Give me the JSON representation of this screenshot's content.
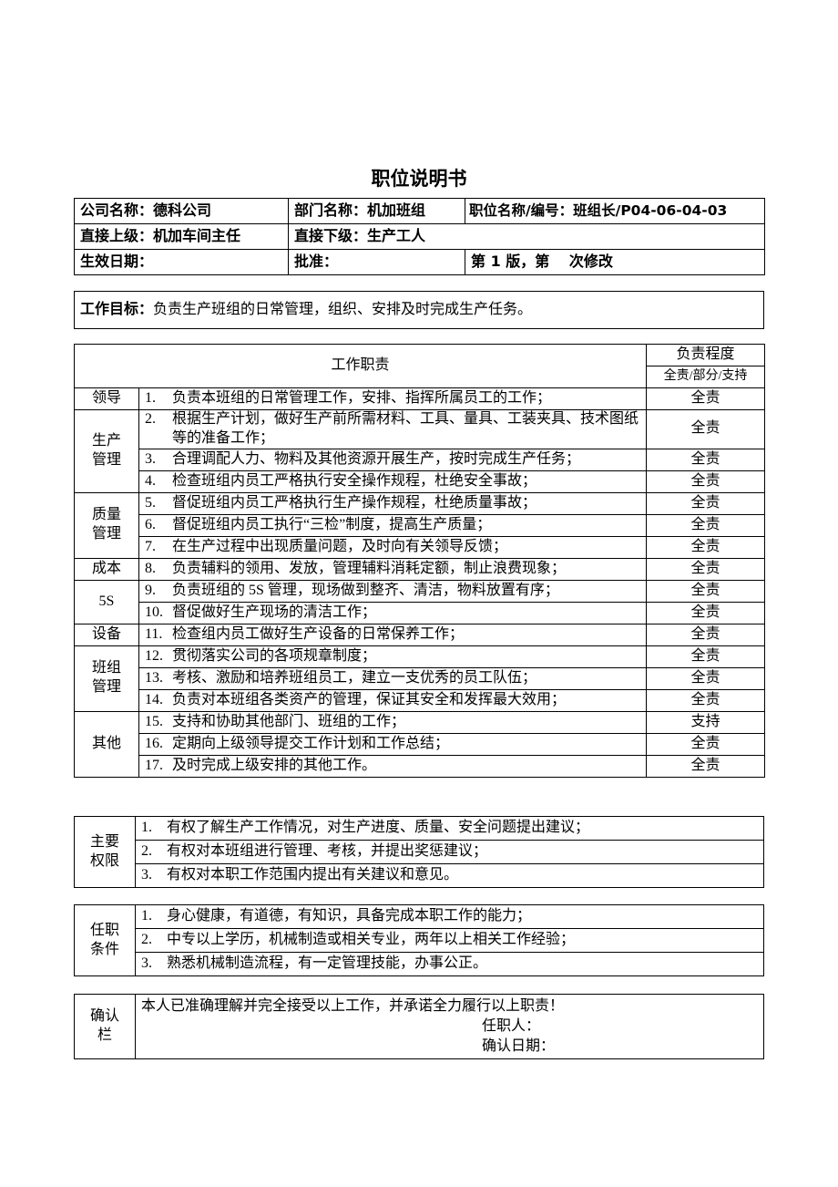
{
  "title": "职位说明书",
  "header": {
    "company": "公司名称：德科公司",
    "department": "部门名称：机加班组",
    "position": "职位名称/编号：班组长/P04-06-04-03",
    "superior": "直接上级：机加车间主任",
    "subordinate": "直接下级：生产工人",
    "effective_date": "生效日期：",
    "approval": "批准：",
    "version": "第 1 版，第　 次修改"
  },
  "goal": {
    "label": "工作目标：",
    "text": "负责生产班组的日常管理，组织、安排及时完成生产任务。"
  },
  "duties": {
    "header": "工作职责",
    "degree_header": "负责程度",
    "degree_sub": "全责/部分/支持",
    "groups": [
      {
        "category": "领导",
        "items": [
          {
            "no": "1.",
            "text": "负责本班组的日常管理工作，安排、指挥所属员工的工作；",
            "degree": "全责"
          }
        ]
      },
      {
        "category": "生产管理",
        "items": [
          {
            "no": "2.",
            "text": "根据生产计划，做好生产前所需材料、工具、量具、工装夹具、技术图纸等的准备工作；",
            "degree": "全责"
          },
          {
            "no": "3.",
            "text": "合理调配人力、物料及其他资源开展生产，按时完成生产任务；",
            "degree": "全责"
          },
          {
            "no": "4.",
            "text": "检查班组内员工严格执行安全操作规程，杜绝安全事故；",
            "degree": "全责"
          }
        ]
      },
      {
        "category": "质量管理",
        "items": [
          {
            "no": "5.",
            "text": "督促班组内员工严格执行生产操作规程，杜绝质量事故；",
            "degree": "全责"
          },
          {
            "no": "6.",
            "text": "督促班组内员工执行“三检”制度，提高生产质量；",
            "degree": "全责"
          },
          {
            "no": "7.",
            "text": "在生产过程中出现质量问题，及时向有关领导反馈；",
            "degree": "全责"
          }
        ]
      },
      {
        "category": "成本",
        "items": [
          {
            "no": "8.",
            "text": "负责辅料的领用、发放，管理辅料消耗定额，制止浪费现象；",
            "degree": "全责"
          }
        ]
      },
      {
        "category": "5S",
        "items": [
          {
            "no": "9.",
            "text": "负责班组的 5S 管理，现场做到整齐、清洁，物料放置有序；",
            "degree": "全责"
          },
          {
            "no": "10.",
            "text": "督促做好生产现场的清洁工作；",
            "degree": "全责"
          }
        ]
      },
      {
        "category": "设备",
        "items": [
          {
            "no": "11.",
            "text": "检查组内员工做好生产设备的日常保养工作；",
            "degree": "全责"
          }
        ]
      },
      {
        "category": "班组管理",
        "items": [
          {
            "no": "12.",
            "text": "贯彻落实公司的各项规章制度；",
            "degree": "全责"
          },
          {
            "no": "13.",
            "text": "考核、激励和培养班组员工，建立一支优秀的员工队伍；",
            "degree": "全责"
          },
          {
            "no": "14.",
            "text": "负责对本班组各类资产的管理，保证其安全和发挥最大效用；",
            "degree": "全责"
          }
        ]
      },
      {
        "category": "其他",
        "items": [
          {
            "no": "15.",
            "text": "支持和协助其他部门、班组的工作；",
            "degree": "支持"
          },
          {
            "no": "16.",
            "text": "定期向上级领导提交工作计划和工作总结；",
            "degree": "全责"
          },
          {
            "no": "17.",
            "text": "及时完成上级安排的其他工作。",
            "degree": "全责"
          }
        ]
      }
    ]
  },
  "authority": {
    "label": "主要权限",
    "items": [
      "1.　有权了解生产工作情况，对生产进度、质量、安全问题提出建议；",
      "2.　有权对本班组进行管理、考核，并提出奖惩建议；",
      "3.　有权对本职工作范围内提出有关建议和意见。"
    ]
  },
  "qualification": {
    "label": "任职条件",
    "items": [
      "1.　身心健康，有道德，有知识，具备完成本职工作的能力；",
      "2.　中专以上学历，机械制造或相关专业，两年以上相关工作经验；",
      "3.　熟悉机械制造流程，有一定管理技能，办事公正。"
    ]
  },
  "confirm": {
    "label": "确认栏",
    "statement": "本人已准确理解并完全接受以上工作，并承诺全力履行以上职责！",
    "holder": "任职人：",
    "date": "确认日期："
  }
}
